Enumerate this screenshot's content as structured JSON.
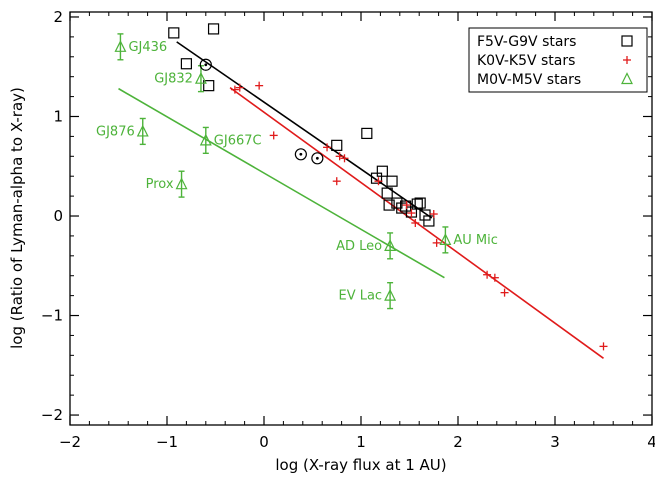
{
  "chart_data": {
    "type": "scatter",
    "xlabel": "log (X-ray flux at 1 AU)",
    "ylabel": "log (Ratio of Lyman-alpha to X-ray)",
    "xlim": [
      -2,
      4
    ],
    "ylim": [
      -2.1,
      2.05
    ],
    "xticks": [
      -2,
      -1,
      0,
      1,
      2,
      3,
      4
    ],
    "yticks": [
      -2,
      -1,
      0,
      1,
      2
    ],
    "legend_position": "top-right",
    "colors": {
      "G": "#000000",
      "K": "#e01b1b",
      "M": "#4db33a"
    },
    "legend": [
      {
        "label": "F5V-G9V stars",
        "series": "G",
        "marker": "square"
      },
      {
        "label": "K0V-K5V stars",
        "series": "K",
        "marker": "plus"
      },
      {
        "label": "M0V-M5V stars",
        "series": "M",
        "marker": "triangle"
      }
    ],
    "series": [
      {
        "name": "F5V-G9V stars",
        "key": "G",
        "marker": "square",
        "points": [
          [
            -0.93,
            1.84
          ],
          [
            -0.52,
            1.88
          ],
          [
            -0.8,
            1.53
          ],
          [
            -0.57,
            1.31
          ],
          [
            0.75,
            0.71
          ],
          [
            1.06,
            0.83
          ],
          [
            1.16,
            0.38
          ],
          [
            1.22,
            0.45
          ],
          [
            1.27,
            0.23
          ],
          [
            1.32,
            0.35
          ],
          [
            1.29,
            0.11
          ],
          [
            1.37,
            0.13
          ],
          [
            1.42,
            0.08
          ],
          [
            1.46,
            0.1
          ],
          [
            1.52,
            0.04
          ],
          [
            1.58,
            0.12
          ],
          [
            1.61,
            0.13
          ],
          [
            1.66,
            0.01
          ],
          [
            1.7,
            -0.05
          ]
        ]
      },
      {
        "name": "K0V-K5V stars",
        "key": "K",
        "marker": "plus",
        "points": [
          [
            -0.3,
            1.27
          ],
          [
            -0.25,
            1.29
          ],
          [
            -0.05,
            1.31
          ],
          [
            0.1,
            0.81
          ],
          [
            0.65,
            0.69
          ],
          [
            0.75,
            0.35
          ],
          [
            0.78,
            0.6
          ],
          [
            0.83,
            0.58
          ],
          [
            1.18,
            0.35
          ],
          [
            1.47,
            0.11
          ],
          [
            1.52,
            0.03
          ],
          [
            1.56,
            -0.07
          ],
          [
            1.75,
            0.02
          ],
          [
            1.78,
            -0.27
          ],
          [
            2.3,
            -0.59
          ],
          [
            2.38,
            -0.62
          ],
          [
            2.48,
            -0.77
          ],
          [
            3.5,
            -1.31
          ]
        ]
      },
      {
        "name": "M0V-M5V stars",
        "key": "M",
        "marker": "triangle",
        "points": [
          {
            "x": -1.48,
            "y": 1.7,
            "err": 0.13,
            "label": "GJ436",
            "label_side": "right"
          },
          {
            "x": -0.65,
            "y": 1.38,
            "err": 0.13,
            "label": "GJ832",
            "label_side": "left"
          },
          {
            "x": -1.25,
            "y": 0.85,
            "err": 0.13,
            "label": "GJ876",
            "label_side": "left"
          },
          {
            "x": -0.6,
            "y": 0.76,
            "err": 0.13,
            "label": "GJ667C",
            "label_side": "right"
          },
          {
            "x": -0.85,
            "y": 0.32,
            "err": 0.13,
            "label": "Prox",
            "label_side": "left"
          },
          {
            "x": 1.3,
            "y": -0.3,
            "err": 0.13,
            "label": "AD Leo",
            "label_side": "left"
          },
          {
            "x": 1.87,
            "y": -0.24,
            "err": 0.13,
            "label": "AU Mic",
            "label_side": "right"
          },
          {
            "x": 1.3,
            "y": -0.8,
            "err": 0.13,
            "label": "EV Lac",
            "label_side": "left"
          }
        ]
      }
    ],
    "sun_points": [
      [
        -0.6,
        1.52
      ],
      [
        0.38,
        0.62
      ],
      [
        0.55,
        0.58
      ]
    ],
    "fit_lines": [
      {
        "series": "G",
        "x": [
          -0.9,
          1.73
        ],
        "y": [
          1.75,
          -0.02
        ]
      },
      {
        "series": "K",
        "x": [
          -0.35,
          3.5
        ],
        "y": [
          1.29,
          -1.43
        ]
      },
      {
        "series": "M",
        "x": [
          -1.5,
          1.86
        ],
        "y": [
          1.28,
          -0.62
        ]
      }
    ]
  }
}
